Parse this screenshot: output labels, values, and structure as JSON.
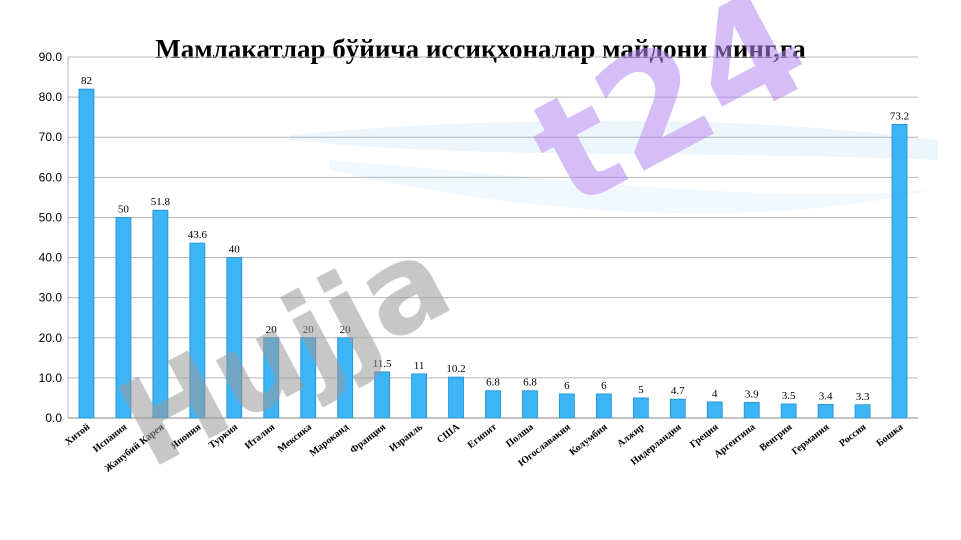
{
  "chart_data": {
    "type": "bar",
    "title": "Мамлакатлар бўйича иссиқхоналар майдони минг,га",
    "xlabel": "",
    "ylabel": "",
    "ylim": [
      0,
      90
    ],
    "yticks": [
      "0.0",
      "10.0",
      "20.0",
      "30.0",
      "40.0",
      "50.0",
      "60.0",
      "70.0",
      "80.0",
      "90.0"
    ],
    "grid": true,
    "legend": "none",
    "bar_color": "#3db4f5",
    "bar_stroke": "#1e8fd0",
    "categories": [
      "Хитой",
      "Испания",
      "Жанубий Карея",
      "Япония",
      "Туркия",
      "Италия",
      "Мексика",
      "Мароканд",
      "Франция",
      "Израиль",
      "США",
      "Египит",
      "Полша",
      "Югославакия",
      "Колумбия",
      "Алжир",
      "Нидерландия",
      "Греция",
      "Аргентина",
      "Венгрия",
      "Германия",
      "Россия",
      "Бошка"
    ],
    "values": [
      82,
      50,
      51.8,
      43.6,
      40,
      20,
      20,
      20,
      11.5,
      11,
      10.2,
      6.8,
      6.8,
      6,
      6,
      5,
      4.7,
      4,
      3.9,
      3.5,
      3.4,
      3.3,
      73.2
    ],
    "data_labels": [
      "82",
      "50",
      "51.8",
      "43.6",
      "40",
      "20",
      "20",
      "20",
      "11.5",
      "11",
      "10.2",
      "6.8",
      "6.8",
      "6",
      "6",
      "5",
      "4.7",
      "4",
      "3.9",
      "3.5",
      "3.4",
      "3.3",
      "73.2"
    ]
  },
  "watermark": {
    "text": "Hujjat24",
    "color_main": "#9a9a9a",
    "color_accent": "#b388f0",
    "color_swoosh": "#4aa8f0"
  }
}
